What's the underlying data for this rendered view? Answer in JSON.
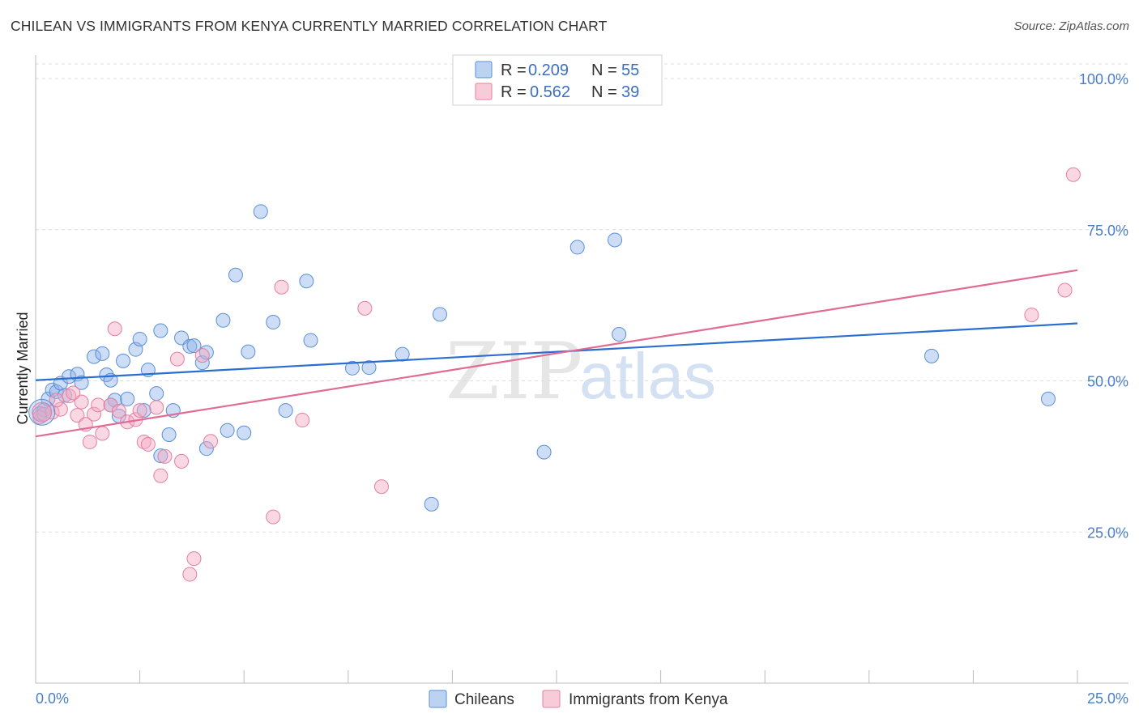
{
  "title": "CHILEAN VS IMMIGRANTS FROM KENYA CURRENTLY MARRIED CORRELATION CHART",
  "source": "Source: ZipAtlas.com",
  "watermark": {
    "zip": "ZIP",
    "atlas": "atlas"
  },
  "chart_data": {
    "type": "scatter",
    "title": "CHILEAN VS IMMIGRANTS FROM KENYA CURRENTLY MARRIED CORRELATION CHART",
    "xlabel": "",
    "ylabel": "Currently Married",
    "xlim": [
      0,
      25
    ],
    "ylim": [
      0,
      100
    ],
    "x_tick_labels": {
      "left": "0.0%",
      "right": "25.0%"
    },
    "y_ticks": [
      {
        "value": 100,
        "label": "100.0%"
      },
      {
        "value": 75,
        "label": "75.0%"
      },
      {
        "value": 50,
        "label": "50.0%"
      },
      {
        "value": 25,
        "label": "25.0%"
      }
    ],
    "stats": {
      "r_label": "R =",
      "n_label": "N =",
      "rows": [
        {
          "r": "0.209",
          "n": "55",
          "color": "#8fb4e8"
        },
        {
          "r": "0.562",
          "n": "39",
          "color": "#f4a8c0"
        }
      ]
    },
    "series": [
      {
        "name": "Chileans",
        "color": "#8fb4e8",
        "stroke": "#5b8fd6",
        "line_color": "#2a6fcf",
        "trend": {
          "x": [
            0,
            25
          ],
          "y": [
            50.1,
            59.5
          ]
        },
        "points": [
          [
            0.1,
            44.6
          ],
          [
            0.2,
            45.2
          ],
          [
            0.3,
            47.0
          ],
          [
            0.4,
            48.5
          ],
          [
            0.5,
            48.2
          ],
          [
            0.6,
            49.6
          ],
          [
            0.7,
            47.6
          ],
          [
            0.8,
            50.7
          ],
          [
            1.0,
            51.1
          ],
          [
            1.1,
            49.7
          ],
          [
            1.4,
            54.0
          ],
          [
            1.6,
            54.5
          ],
          [
            1.7,
            51.0
          ],
          [
            1.8,
            50.1
          ],
          [
            1.9,
            46.8
          ],
          [
            2.0,
            44.2
          ],
          [
            2.1,
            53.3
          ],
          [
            2.2,
            47.0
          ],
          [
            2.4,
            55.2
          ],
          [
            2.5,
            56.9
          ],
          [
            2.6,
            45.1
          ],
          [
            2.7,
            51.8
          ],
          [
            2.9,
            47.9
          ],
          [
            3.0,
            58.3
          ],
          [
            3.2,
            41.1
          ],
          [
            3.3,
            45.1
          ],
          [
            3.5,
            57.1
          ],
          [
            3.7,
            55.7
          ],
          [
            3.8,
            55.8
          ],
          [
            4.0,
            53.0
          ],
          [
            4.1,
            54.7
          ],
          [
            4.5,
            60.0
          ],
          [
            4.6,
            41.8
          ],
          [
            4.8,
            67.5
          ],
          [
            5.0,
            41.4
          ],
          [
            5.1,
            54.8
          ],
          [
            5.4,
            78.0
          ],
          [
            5.7,
            59.7
          ],
          [
            6.0,
            45.1
          ],
          [
            6.5,
            66.5
          ],
          [
            6.6,
            56.7
          ],
          [
            7.6,
            52.1
          ],
          [
            8.0,
            52.2
          ],
          [
            8.8,
            54.4
          ],
          [
            9.5,
            29.6
          ],
          [
            9.7,
            61.0
          ],
          [
            12.2,
            38.2
          ],
          [
            13.0,
            72.1
          ],
          [
            13.9,
            73.3
          ],
          [
            14.0,
            57.7
          ],
          [
            21.5,
            54.1
          ],
          [
            24.3,
            47.0
          ],
          [
            3.0,
            37.6
          ],
          [
            4.1,
            38.8
          ],
          [
            1.8,
            46.0
          ]
        ]
      },
      {
        "name": "Immigrants from Kenya",
        "color": "#f4a8c0",
        "stroke": "#e57fa1",
        "line_color": "#e06b94",
        "trend": {
          "x": [
            0,
            25
          ],
          "y": [
            40.8,
            68.3
          ]
        },
        "points": [
          [
            0.1,
            44.0
          ],
          [
            0.2,
            44.5
          ],
          [
            0.4,
            44.8
          ],
          [
            0.6,
            45.3
          ],
          [
            0.8,
            47.5
          ],
          [
            1.0,
            44.3
          ],
          [
            1.1,
            46.5
          ],
          [
            1.2,
            42.8
          ],
          [
            1.3,
            39.9
          ],
          [
            1.4,
            44.5
          ],
          [
            1.5,
            46.0
          ],
          [
            1.6,
            41.3
          ],
          [
            1.8,
            46.0
          ],
          [
            1.9,
            58.6
          ],
          [
            2.2,
            43.2
          ],
          [
            2.4,
            43.6
          ],
          [
            2.5,
            45.1
          ],
          [
            2.6,
            39.9
          ],
          [
            2.7,
            39.5
          ],
          [
            2.9,
            45.6
          ],
          [
            3.0,
            34.3
          ],
          [
            3.1,
            37.5
          ],
          [
            3.4,
            53.6
          ],
          [
            3.5,
            36.7
          ],
          [
            3.7,
            18.0
          ],
          [
            3.8,
            20.6
          ],
          [
            4.0,
            54.2
          ],
          [
            4.2,
            40.0
          ],
          [
            5.7,
            27.5
          ],
          [
            5.9,
            65.5
          ],
          [
            6.4,
            43.5
          ],
          [
            7.9,
            62.0
          ],
          [
            8.3,
            32.5
          ],
          [
            23.9,
            60.9
          ],
          [
            24.7,
            65.0
          ],
          [
            24.9,
            84.1
          ],
          [
            0.5,
            46.8
          ],
          [
            0.9,
            48.0
          ],
          [
            2.0,
            45.0
          ]
        ]
      }
    ]
  }
}
